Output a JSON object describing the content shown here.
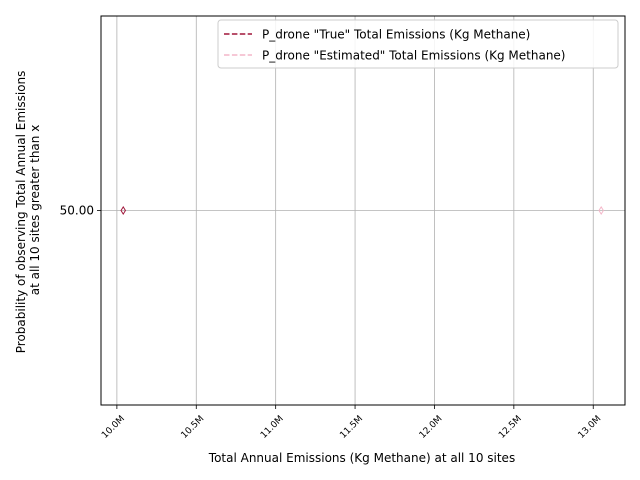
{
  "chart_data": {
    "type": "scatter",
    "xlabel": "Total Annual Emissions (Kg Methane) at all 10 sites",
    "ylabel_lines": [
      "Probability of observing Total Annual Emissions",
      "at all 10 sites greater than x"
    ],
    "xlim": [
      9900000,
      13200000
    ],
    "ylim": [
      0,
      100
    ],
    "x_ticks": [
      {
        "value": 10000000,
        "label": "10.0M"
      },
      {
        "value": 10500000,
        "label": "10.5M"
      },
      {
        "value": 11000000,
        "label": "11.0M"
      },
      {
        "value": 11500000,
        "label": "11.5M"
      },
      {
        "value": 12000000,
        "label": "12.0M"
      },
      {
        "value": 12500000,
        "label": "12.5M"
      },
      {
        "value": 13000000,
        "label": "13.0M"
      }
    ],
    "y_ticks": [
      {
        "value": 50,
        "label": "50.00"
      }
    ],
    "grid": true,
    "legend_position": "top-right",
    "series": [
      {
        "name": "P_drone \"True\" Total Emissions (Kg Methane)",
        "color": "#a0163a",
        "line_style": "dashed",
        "marker": "thin-diamond",
        "points": [
          {
            "x": 10040000,
            "y": 50
          }
        ]
      },
      {
        "name": "P_drone \"Estimated\" Total Emissions (Kg Methane)",
        "color": "#f4b6c8",
        "line_style": "dashed",
        "marker": "thin-diamond",
        "points": [
          {
            "x": 13050000,
            "y": 50
          }
        ]
      }
    ]
  }
}
